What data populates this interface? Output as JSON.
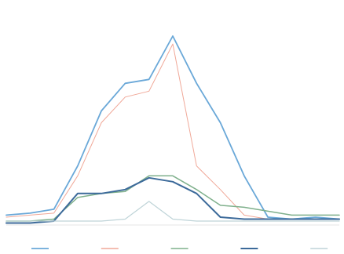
{
  "chart_data": {
    "type": "line",
    "title": "",
    "xlabel": "",
    "ylabel": "",
    "x_tick_labels": [
      "",
      "",
      "",
      "",
      "",
      "",
      "",
      "",
      "",
      "",
      "",
      "",
      "",
      "",
      "",
      ""
    ],
    "ylim": [
      0,
      100
    ],
    "grid": false,
    "legend_position": "bottom",
    "series": [
      {
        "name": "",
        "color": "#6aa8d8",
        "width": 1.8,
        "values": [
          5,
          6,
          8,
          30,
          58,
          72,
          74,
          96,
          72,
          52,
          25,
          4,
          3,
          4,
          3
        ]
      },
      {
        "name": "",
        "color": "#f0a898",
        "width": 1.0,
        "values": [
          4,
          5,
          6,
          25,
          52,
          65,
          68,
          92,
          30,
          18,
          5,
          3,
          3,
          3,
          3
        ]
      },
      {
        "name": "",
        "color": "#7fb08c",
        "width": 1.5,
        "values": [
          2,
          2,
          3,
          14,
          16,
          17,
          25,
          25,
          18,
          10,
          9,
          7,
          5,
          5,
          5
        ]
      },
      {
        "name": "",
        "color": "#3c6a9a",
        "width": 2.0,
        "values": [
          1,
          1,
          2,
          16,
          16,
          18,
          24,
          22,
          16,
          4,
          3,
          3,
          3,
          3,
          3
        ]
      },
      {
        "name": "",
        "color": "#bfd4d8",
        "width": 1.2,
        "values": [
          2,
          2,
          2,
          2,
          2,
          3,
          12,
          3,
          2,
          2,
          2,
          2,
          2,
          2,
          2
        ]
      }
    ]
  }
}
